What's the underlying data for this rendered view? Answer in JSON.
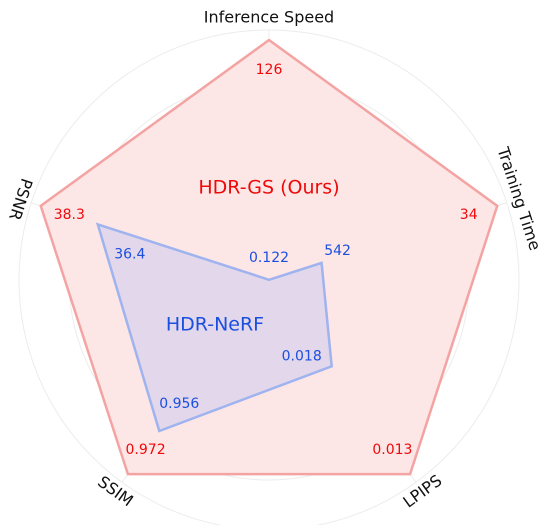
{
  "chart_data": {
    "type": "radar",
    "axes": [
      {
        "label": "Inference Speed",
        "rlim": [
          0,
          126
        ]
      },
      {
        "label": "Training Time",
        "rlim": [
          694,
          34
        ]
      },
      {
        "label": "LPIPS",
        "rlim": [
          0.022,
          0.013
        ]
      },
      {
        "label": "SSIM",
        "rlim": [
          0.9,
          0.972
        ]
      },
      {
        "label": "PSNR",
        "rlim": [
          30.7,
          38.3
        ]
      }
    ],
    "series": [
      {
        "name": "HDR-GS (Ours)",
        "color": "#f4a3a3",
        "fill": "#fde6e6",
        "label_color": "#ee0a0a",
        "values": [
          126,
          34,
          0.013,
          0.972,
          38.3
        ]
      },
      {
        "name": "HDR-NeRF",
        "color": "#9fb3ef",
        "fill": "#d9d2ec",
        "label_color": "#1a4fe0",
        "values": [
          0.122,
          542,
          0.018,
          0.956,
          36.4
        ]
      }
    ],
    "grid": true
  }
}
